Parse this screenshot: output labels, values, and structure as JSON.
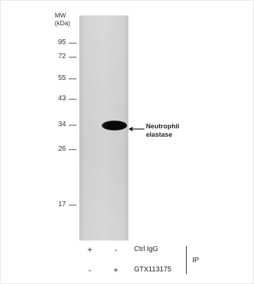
{
  "figure": {
    "mw_title_line1": "MW",
    "mw_title_line2": "(kDa)",
    "markers": [
      "95",
      "72",
      "55",
      "43",
      "34",
      "26",
      "17"
    ],
    "target_label_line1": "Neutrophil",
    "target_label_line2": "elastase",
    "lanes": [
      {
        "label": "Ctrl IgG",
        "lane1": "+",
        "lane2": "-"
      },
      {
        "label": "GTX113175",
        "lane1": "-",
        "lane2": "+"
      }
    ],
    "ip_label": "IP"
  },
  "colors": {
    "membrane": "#d5d5d5",
    "band": "#0a0a0a",
    "text": "#2a2a2a"
  }
}
